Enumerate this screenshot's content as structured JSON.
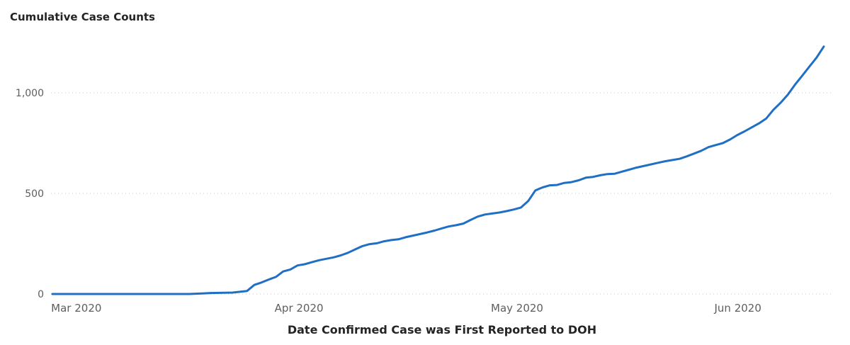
{
  "chart_data": {
    "type": "line",
    "title": "Cumulative Case Counts",
    "xlabel": "Date Confirmed Case was First Reported to DOH",
    "ylabel": "",
    "x_type": "date",
    "x_ticks": [
      {
        "label": "Mar 2020",
        "date": "2020-03-01"
      },
      {
        "label": "Apr 2020",
        "date": "2020-04-01"
      },
      {
        "label": "May 2020",
        "date": "2020-05-01"
      },
      {
        "label": "Jun 2020",
        "date": "2020-06-01"
      }
    ],
    "y_ticks": [
      {
        "label": "0",
        "value": 0
      },
      {
        "label": "500",
        "value": 500
      },
      {
        "label": "1,000",
        "value": 1000
      }
    ],
    "ylim": [
      0,
      1000
    ],
    "xlim": [
      "2020-02-29",
      "2020-06-15"
    ],
    "grid": "horizontal dotted",
    "color": "#1f6fc5",
    "series": [
      {
        "name": "",
        "points": [
          [
            "2020-02-29",
            0
          ],
          [
            "2020-03-19",
            0
          ],
          [
            "2020-03-21",
            3
          ],
          [
            "2020-03-22",
            5
          ],
          [
            "2020-03-25",
            7
          ],
          [
            "2020-03-27",
            15
          ],
          [
            "2020-03-28",
            45
          ],
          [
            "2020-03-29",
            57
          ],
          [
            "2020-03-30",
            72
          ],
          [
            "2020-03-31",
            85
          ],
          [
            "2020-04-01",
            112
          ],
          [
            "2020-04-02",
            122
          ],
          [
            "2020-04-03",
            142
          ],
          [
            "2020-04-04",
            148
          ],
          [
            "2020-04-05",
            158
          ],
          [
            "2020-04-06",
            168
          ],
          [
            "2020-04-07",
            175
          ],
          [
            "2020-04-08",
            182
          ],
          [
            "2020-04-09",
            192
          ],
          [
            "2020-04-10",
            205
          ],
          [
            "2020-04-11",
            222
          ],
          [
            "2020-04-12",
            238
          ],
          [
            "2020-04-13",
            248
          ],
          [
            "2020-04-14",
            252
          ],
          [
            "2020-04-15",
            262
          ],
          [
            "2020-04-16",
            268
          ],
          [
            "2020-04-17",
            272
          ],
          [
            "2020-04-18",
            282
          ],
          [
            "2020-04-19",
            290
          ],
          [
            "2020-04-20",
            298
          ],
          [
            "2020-04-21",
            306
          ],
          [
            "2020-04-22",
            315
          ],
          [
            "2020-04-23",
            326
          ],
          [
            "2020-04-24",
            336
          ],
          [
            "2020-04-25",
            342
          ],
          [
            "2020-04-26",
            350
          ],
          [
            "2020-04-27",
            368
          ],
          [
            "2020-04-28",
            385
          ],
          [
            "2020-04-29",
            395
          ],
          [
            "2020-04-30",
            400
          ],
          [
            "2020-05-01",
            405
          ],
          [
            "2020-05-02",
            412
          ],
          [
            "2020-05-03",
            420
          ],
          [
            "2020-05-04",
            430
          ],
          [
            "2020-05-05",
            462
          ],
          [
            "2020-05-06",
            515
          ],
          [
            "2020-05-07",
            530
          ],
          [
            "2020-05-08",
            540
          ],
          [
            "2020-05-09",
            542
          ],
          [
            "2020-05-10",
            552
          ],
          [
            "2020-05-11",
            556
          ],
          [
            "2020-05-12",
            565
          ],
          [
            "2020-05-13",
            578
          ],
          [
            "2020-05-14",
            582
          ],
          [
            "2020-05-15",
            590
          ],
          [
            "2020-05-16",
            596
          ],
          [
            "2020-05-17",
            598
          ],
          [
            "2020-05-18",
            608
          ],
          [
            "2020-05-19",
            618
          ],
          [
            "2020-05-20",
            628
          ],
          [
            "2020-05-21",
            636
          ],
          [
            "2020-05-22",
            644
          ],
          [
            "2020-05-23",
            652
          ],
          [
            "2020-05-24",
            660
          ],
          [
            "2020-05-25",
            666
          ],
          [
            "2020-05-26",
            672
          ],
          [
            "2020-05-27",
            684
          ],
          [
            "2020-05-28",
            698
          ],
          [
            "2020-05-29",
            712
          ],
          [
            "2020-05-30",
            730
          ],
          [
            "2020-05-31",
            740
          ],
          [
            "2020-06-01",
            750
          ],
          [
            "2020-06-02",
            768
          ],
          [
            "2020-06-03",
            790
          ],
          [
            "2020-06-04",
            808
          ],
          [
            "2020-06-05",
            828
          ],
          [
            "2020-06-06",
            848
          ],
          [
            "2020-06-07",
            872
          ],
          [
            "2020-06-08",
            915
          ],
          [
            "2020-06-09",
            950
          ],
          [
            "2020-06-10",
            990
          ],
          [
            "2020-06-11",
            1040
          ],
          [
            "2020-06-12",
            1085
          ],
          [
            "2020-06-13",
            1130
          ],
          [
            "2020-06-14",
            1175
          ],
          [
            "2020-06-15",
            1230
          ]
        ]
      }
    ]
  }
}
